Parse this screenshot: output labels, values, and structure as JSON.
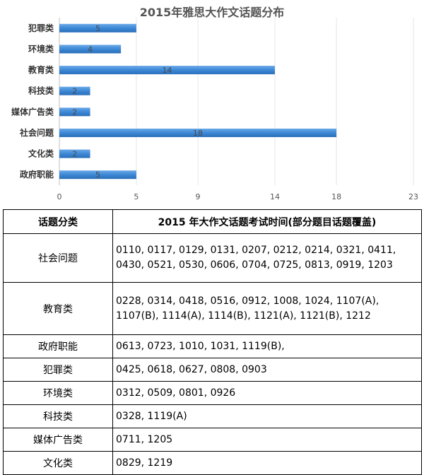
{
  "chart_data": {
    "type": "bar",
    "orientation": "horizontal",
    "title": "2015年雅思大作文话题分布",
    "categories": [
      "犯罪类",
      "环境类",
      "教育类",
      "科技类",
      "媒体广告类",
      "社会问题",
      "文化类",
      "政府职能"
    ],
    "values": [
      5,
      4,
      14,
      2,
      2,
      18,
      2,
      5
    ],
    "x_ticks": [
      "0",
      "5",
      "9",
      "14",
      "18",
      "23"
    ],
    "xlim": [
      0,
      23
    ],
    "grid": true,
    "bar_color": "#3d88d6"
  },
  "table": {
    "headers": [
      "话题分类",
      "2015 年大作文话题考试时间(部分题目话题覆盖)"
    ],
    "rows": [
      {
        "category": "社会问题",
        "dates": "0110, 0117, 0129, 0131, 0207, 0212, 0214, 0321, 0411, 0430, 0521, 0530, 0606, 0704, 0725, 0813, 0919, 1203"
      },
      {
        "category": "教育类",
        "dates": "0228, 0314, 0418, 0516, 0912, 1008, 1024, 1107(A), 1107(B), 1114(A), 1114(B), 1121(A), 1121(B), 1212"
      },
      {
        "category": "政府职能",
        "dates": "0613, 0723, 1010, 1031, 1119(B),"
      },
      {
        "category": "犯罪类",
        "dates": "0425, 0618, 0627, 0808, 0903"
      },
      {
        "category": "环境类",
        "dates": "0312, 0509, 0801, 0926"
      },
      {
        "category": "科技类",
        "dates": "0328, 1119(A)"
      },
      {
        "category": "媒体广告类",
        "dates": "0711, 1205"
      },
      {
        "category": "文化类",
        "dates": "0829, 1219"
      }
    ]
  }
}
